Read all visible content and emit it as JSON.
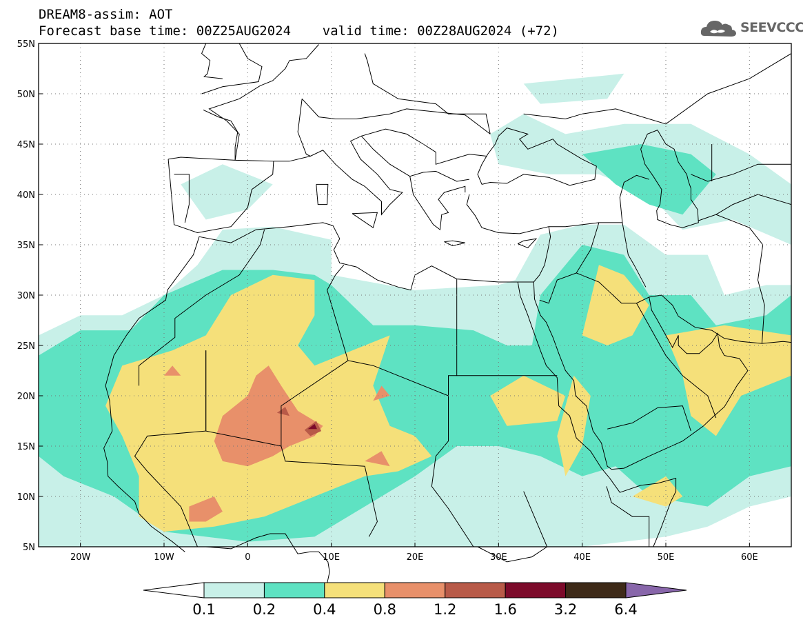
{
  "title": {
    "line1": "DREAM8-assim: AOT",
    "line2": "Forecast base time: 00Z25AUG2024    valid time: 00Z28AUG2024 (+72)"
  },
  "logo": {
    "text": "SEEVCCC",
    "icon": "cloud-icon",
    "color": "#666666"
  },
  "map": {
    "projection": "lat-lon",
    "lon_range": [
      -25,
      65
    ],
    "lat_range": [
      5,
      55
    ],
    "grid": "dotted",
    "lat_ticks": [
      {
        "value": 55,
        "label": "55N"
      },
      {
        "value": 50,
        "label": "50N"
      },
      {
        "value": 45,
        "label": "45N"
      },
      {
        "value": 40,
        "label": "40N"
      },
      {
        "value": 35,
        "label": "35N"
      },
      {
        "value": 30,
        "label": "30N"
      },
      {
        "value": 25,
        "label": "25N"
      },
      {
        "value": 20,
        "label": "20N"
      },
      {
        "value": 15,
        "label": "15N"
      },
      {
        "value": 10,
        "label": "10N"
      },
      {
        "value": 5,
        "label": "5N"
      }
    ],
    "lon_ticks": [
      {
        "value": -20,
        "label": "20W"
      },
      {
        "value": -10,
        "label": "10W"
      },
      {
        "value": 0,
        "label": "0"
      },
      {
        "value": 10,
        "label": "10E"
      },
      {
        "value": 20,
        "label": "20E"
      },
      {
        "value": 30,
        "label": "30E"
      },
      {
        "value": 40,
        "label": "40E"
      },
      {
        "value": 50,
        "label": "50E"
      },
      {
        "value": 60,
        "label": "60E"
      }
    ],
    "field": {
      "variable": "AOT",
      "regions": [
        {
          "level": 1,
          "poly": [
            [
              -25,
              26
            ],
            [
              -20,
              28
            ],
            [
              -15,
              28
            ],
            [
              -10,
              30
            ],
            [
              -6,
              33
            ],
            [
              -3,
              36.5
            ],
            [
              3,
              36.8
            ],
            [
              10,
              35.5
            ],
            [
              10,
              32
            ],
            [
              20,
              30.5
            ],
            [
              30,
              31
            ],
            [
              32,
              31.5
            ],
            [
              35,
              36
            ],
            [
              40,
              37
            ],
            [
              45,
              37
            ],
            [
              50,
              34
            ],
            [
              55,
              34
            ],
            [
              57,
              30
            ],
            [
              62,
              31
            ],
            [
              65,
              31
            ],
            [
              65,
              10
            ],
            [
              60,
              9
            ],
            [
              55,
              7
            ],
            [
              50,
              6
            ],
            [
              40,
              5
            ],
            [
              -25,
              5
            ]
          ]
        },
        {
          "level": 1,
          "poly": [
            [
              -8,
              41
            ],
            [
              -3,
              43
            ],
            [
              3,
              41
            ],
            [
              0,
              38.5
            ],
            [
              -5,
              37.5
            ]
          ]
        },
        {
          "level": 1,
          "poly": [
            [
              38,
              46
            ],
            [
              45,
              47
            ],
            [
              53,
              47
            ],
            [
              60,
              44
            ],
            [
              65,
              41
            ],
            [
              65,
              35
            ],
            [
              58,
              37.5
            ],
            [
              52,
              36.5
            ],
            [
              48,
              40
            ],
            [
              42,
              42
            ],
            [
              36,
              42
            ],
            [
              30,
              43
            ],
            [
              29,
              46
            ],
            [
              33,
              48
            ]
          ]
        },
        {
          "level": 1,
          "poly": [
            [
              33,
              51
            ],
            [
              45,
              52
            ],
            [
              43,
              49.5
            ],
            [
              35,
              49
            ]
          ]
        },
        {
          "level": 2,
          "poly": [
            [
              -25,
              24
            ],
            [
              -20,
              26.5
            ],
            [
              -14,
              26.5
            ],
            [
              -10,
              30
            ],
            [
              -3,
              32.5
            ],
            [
              3,
              32.5
            ],
            [
              8,
              32
            ],
            [
              10,
              31
            ],
            [
              15,
              27
            ],
            [
              20,
              27
            ],
            [
              27,
              26.5
            ],
            [
              31,
              25
            ],
            [
              34,
              25
            ],
            [
              35,
              30
            ],
            [
              37,
              32
            ],
            [
              40,
              35
            ],
            [
              45,
              34
            ],
            [
              48,
              30
            ],
            [
              53,
              30
            ],
            [
              56,
              27
            ],
            [
              62,
              28
            ],
            [
              65,
              30
            ],
            [
              65,
              13
            ],
            [
              60,
              12
            ],
            [
              55,
              9
            ],
            [
              48,
              10
            ],
            [
              44,
              13
            ],
            [
              40,
              12
            ],
            [
              35,
              14
            ],
            [
              30,
              15
            ],
            [
              25,
              15
            ],
            [
              20,
              12
            ],
            [
              14,
              9
            ],
            [
              8,
              6
            ],
            [
              0,
              5.5
            ],
            [
              -10,
              6.5
            ],
            [
              -16,
              10
            ],
            [
              -22,
              12
            ],
            [
              -25,
              14
            ]
          ]
        },
        {
          "level": 2,
          "poly": [
            [
              40,
              44
            ],
            [
              47,
              45
            ],
            [
              53,
              44
            ],
            [
              56,
              42
            ],
            [
              52,
              38
            ],
            [
              48,
              39
            ],
            [
              44,
              41
            ]
          ]
        },
        {
          "level": 3,
          "poly": [
            [
              -16,
              21
            ],
            [
              -15,
              23
            ],
            [
              -9,
              24.5
            ],
            [
              -5,
              26
            ],
            [
              -2,
              30
            ],
            [
              3,
              32
            ],
            [
              8,
              31.5
            ],
            [
              8,
              28
            ],
            [
              6,
              25
            ],
            [
              8,
              23
            ],
            [
              14,
              25
            ],
            [
              17,
              26
            ],
            [
              15,
              21
            ],
            [
              17,
              17
            ],
            [
              20,
              16
            ],
            [
              22,
              14
            ],
            [
              18,
              12.5
            ],
            [
              14,
              12
            ],
            [
              8,
              10
            ],
            [
              2,
              8
            ],
            [
              -4,
              7
            ],
            [
              -10,
              6.5
            ],
            [
              -13,
              8
            ],
            [
              -13,
              12
            ],
            [
              -15,
              16
            ],
            [
              -17,
              19
            ]
          ]
        },
        {
          "level": 3,
          "poly": [
            [
              29,
              20
            ],
            [
              33,
              22
            ],
            [
              38,
              20
            ],
            [
              37,
              17.5
            ],
            [
              31,
              17
            ]
          ]
        },
        {
          "level": 3,
          "poly": [
            [
              37,
              16
            ],
            [
              39,
              22
            ],
            [
              41,
              20
            ],
            [
              40,
              15
            ],
            [
              38,
              12
            ]
          ]
        },
        {
          "level": 3,
          "poly": [
            [
              40,
              26
            ],
            [
              42,
              33
            ],
            [
              45,
              32
            ],
            [
              48,
              29
            ],
            [
              46,
              26
            ],
            [
              43,
              25
            ]
          ]
        },
        {
          "level": 3,
          "poly": [
            [
              50,
              26
            ],
            [
              57,
              27
            ],
            [
              65,
              26
            ],
            [
              65,
              22
            ],
            [
              59,
              20
            ],
            [
              56,
              16
            ],
            [
              53,
              18
            ],
            [
              52,
              22
            ]
          ]
        },
        {
          "level": 3,
          "poly": [
            [
              46,
              10
            ],
            [
              50,
              12
            ],
            [
              52,
              10
            ],
            [
              50,
              9
            ]
          ]
        },
        {
          "level": 4,
          "poly": [
            [
              -3,
              18
            ],
            [
              0,
              20
            ],
            [
              1,
              22
            ],
            [
              2.5,
              23
            ],
            [
              4,
              21
            ],
            [
              6,
              18.5
            ],
            [
              9,
              17
            ],
            [
              8,
              16
            ],
            [
              5,
              15
            ],
            [
              3,
              14
            ],
            [
              0,
              13
            ],
            [
              -3,
              13.5
            ],
            [
              -4,
              15.5
            ]
          ]
        },
        {
          "level": 4,
          "poly": [
            [
              -7,
              9
            ],
            [
              -4,
              10
            ],
            [
              -3,
              8.5
            ],
            [
              -5,
              7.5
            ],
            [
              -7,
              7.5
            ]
          ]
        },
        {
          "level": 4,
          "poly": [
            [
              -10,
              22
            ],
            [
              -9,
              23
            ],
            [
              -8,
              22
            ]
          ]
        },
        {
          "level": 4,
          "poly": [
            [
              14,
              13.5
            ],
            [
              16,
              14.5
            ],
            [
              17,
              13
            ]
          ]
        },
        {
          "level": 4,
          "poly": [
            [
              15,
              19.5
            ],
            [
              16,
              21
            ],
            [
              17,
              20
            ]
          ]
        },
        {
          "level": 5,
          "poly": [
            [
              3.5,
              18.3
            ],
            [
              4.5,
              18.9
            ],
            [
              5,
              18
            ]
          ]
        },
        {
          "level": 5,
          "poly": [
            [
              6.8,
              16.6
            ],
            [
              8.2,
              17.5
            ],
            [
              8.8,
              16.5
            ],
            [
              7.5,
              16
            ]
          ]
        },
        {
          "level": 6,
          "poly": [
            [
              7.2,
              16.7
            ],
            [
              8,
              17.2
            ],
            [
              8.3,
              16.7
            ]
          ]
        }
      ]
    }
  },
  "colorbar": {
    "labels": [
      "0.1",
      "0.2",
      "0.4",
      "0.8",
      "1.2",
      "1.6",
      "3.2",
      "6.4"
    ],
    "colors": [
      "#ffffff",
      "#c8f0e8",
      "#5ee2c2",
      "#f5e07a",
      "#e8906a",
      "#b85a48",
      "#7c0a2a",
      "#3e2a18",
      "#8866aa"
    ]
  }
}
